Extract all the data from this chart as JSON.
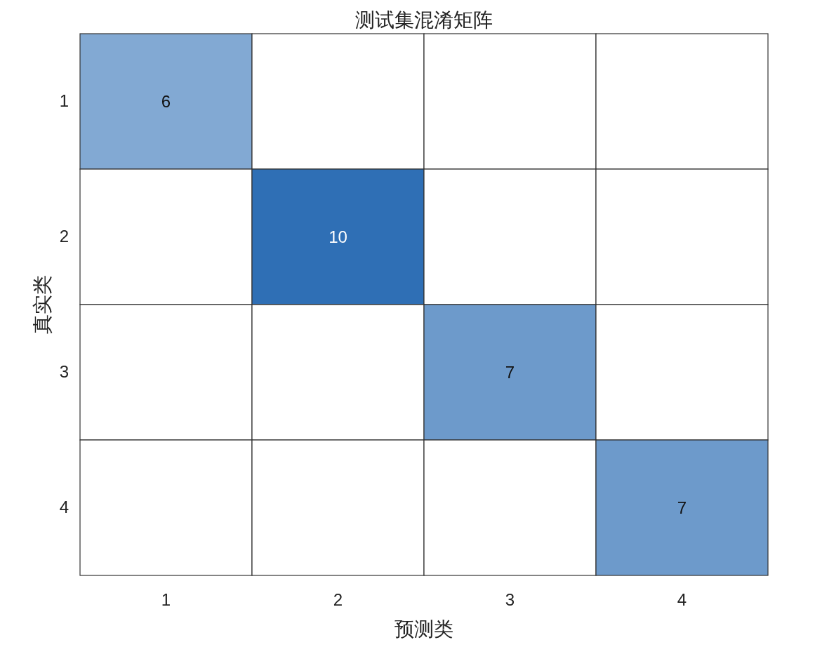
{
  "chart_data": {
    "type": "heatmap",
    "title": "测试集混淆矩阵",
    "xlabel": "预测类",
    "ylabel": "真实类",
    "categories": [
      "1",
      "2",
      "3",
      "4"
    ],
    "y_categories": [
      "1",
      "2",
      "3",
      "4"
    ],
    "cells": [
      [
        6,
        null,
        null,
        null
      ],
      [
        null,
        10,
        null,
        null
      ],
      [
        null,
        null,
        7,
        null
      ],
      [
        null,
        null,
        null,
        7
      ]
    ],
    "data_labels": true
  }
}
